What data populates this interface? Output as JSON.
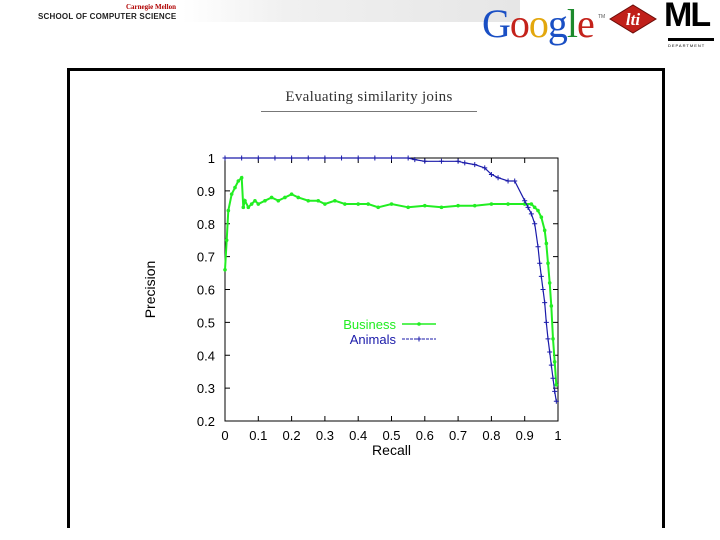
{
  "header": {
    "cmu_label": "Carnegie Mellon",
    "school_label": "SCHOOL OF COMPUTER SCIENCE",
    "google_label": "Google",
    "google_tm": "TM",
    "lti_label": "lti",
    "ml_label": "ML",
    "ml_dept_label": "DEPARTMENT"
  },
  "colors": {
    "business": "#22ee22",
    "animals": "#1a1aaa",
    "lti_red": "#c0201a",
    "cmu_red": "#b00000"
  },
  "chart_data": {
    "type": "line",
    "title": "Evaluating similarity joins",
    "xlabel": "Recall",
    "ylabel": "Precision",
    "xlim": [
      0,
      1
    ],
    "ylim": [
      0.2,
      1
    ],
    "xticks": [
      "0",
      "0.1",
      "0.2",
      "0.3",
      "0.4",
      "0.5",
      "0.6",
      "0.7",
      "0.8",
      "0.9",
      "1"
    ],
    "yticks": [
      "0.2",
      "0.3",
      "0.4",
      "0.5",
      "0.6",
      "0.7",
      "0.8",
      "0.9",
      "1"
    ],
    "legend_position": "center",
    "grid": false,
    "series": [
      {
        "name": "Business",
        "color": "#22ee22",
        "x": [
          0.0,
          0.005,
          0.01,
          0.02,
          0.03,
          0.04,
          0.05,
          0.055,
          0.06,
          0.07,
          0.08,
          0.09,
          0.1,
          0.12,
          0.14,
          0.16,
          0.18,
          0.2,
          0.22,
          0.25,
          0.28,
          0.3,
          0.33,
          0.36,
          0.4,
          0.43,
          0.46,
          0.5,
          0.55,
          0.6,
          0.65,
          0.7,
          0.75,
          0.8,
          0.85,
          0.9,
          0.92,
          0.93,
          0.94,
          0.95,
          0.96,
          0.965,
          0.97,
          0.975,
          0.98,
          0.985,
          0.99,
          0.995
        ],
        "y": [
          0.66,
          0.75,
          0.84,
          0.89,
          0.91,
          0.93,
          0.94,
          0.85,
          0.87,
          0.85,
          0.86,
          0.87,
          0.86,
          0.87,
          0.88,
          0.87,
          0.88,
          0.89,
          0.88,
          0.87,
          0.87,
          0.86,
          0.87,
          0.86,
          0.86,
          0.86,
          0.85,
          0.86,
          0.85,
          0.855,
          0.85,
          0.855,
          0.855,
          0.86,
          0.86,
          0.86,
          0.86,
          0.85,
          0.84,
          0.82,
          0.78,
          0.74,
          0.68,
          0.62,
          0.55,
          0.45,
          0.38,
          0.31
        ]
      },
      {
        "name": "Animals",
        "color": "#1a1aaa",
        "x": [
          0.0,
          0.05,
          0.1,
          0.15,
          0.2,
          0.25,
          0.3,
          0.35,
          0.4,
          0.45,
          0.5,
          0.55,
          0.57,
          0.6,
          0.65,
          0.7,
          0.72,
          0.75,
          0.78,
          0.8,
          0.82,
          0.85,
          0.87,
          0.9,
          0.91,
          0.92,
          0.93,
          0.94,
          0.945,
          0.95,
          0.955,
          0.96,
          0.965,
          0.97,
          0.975,
          0.98,
          0.985,
          0.99,
          0.995
        ],
        "y": [
          1.0,
          1.0,
          1.0,
          1.0,
          1.0,
          1.0,
          1.0,
          1.0,
          1.0,
          1.0,
          1.0,
          1.0,
          0.995,
          0.99,
          0.99,
          0.99,
          0.985,
          0.98,
          0.97,
          0.95,
          0.94,
          0.93,
          0.93,
          0.87,
          0.85,
          0.83,
          0.8,
          0.73,
          0.68,
          0.64,
          0.6,
          0.56,
          0.5,
          0.45,
          0.41,
          0.37,
          0.33,
          0.29,
          0.26
        ]
      }
    ]
  }
}
